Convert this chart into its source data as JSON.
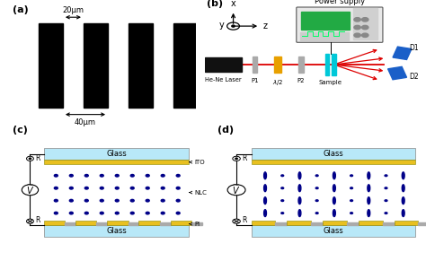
{
  "fig_width": 4.74,
  "fig_height": 2.91,
  "dpi": 100,
  "bg_color": "#ffffff",
  "panel_labels": [
    "(a)",
    "(b)",
    "(c)",
    "(d)"
  ],
  "panel_label_fontsize": 8,
  "panel_label_weight": "bold",
  "grating_bar_color": "#000000",
  "annotation_20um": "20μm",
  "annotation_40um": "40μm",
  "laser_color": "#dd0000",
  "optic_gray": "#aaaaaa",
  "optic_yellow": "#e8a000",
  "optic_cyan": "#00c8d8",
  "optic_blue": "#1a5fc8",
  "glass_color": "#b8e8f8",
  "glass_border": "#888888",
  "ito_color": "#e8c020",
  "ito_border": "#888800",
  "pi_color": "#aaaaaa",
  "nlc_dot_color": "#000088",
  "nlc_ellipse_color": "#000088",
  "wire_color": "#000000",
  "ps_bg": "#e8e8e8",
  "ps_screen": "#22aa44",
  "ps_knob": "#cccccc"
}
